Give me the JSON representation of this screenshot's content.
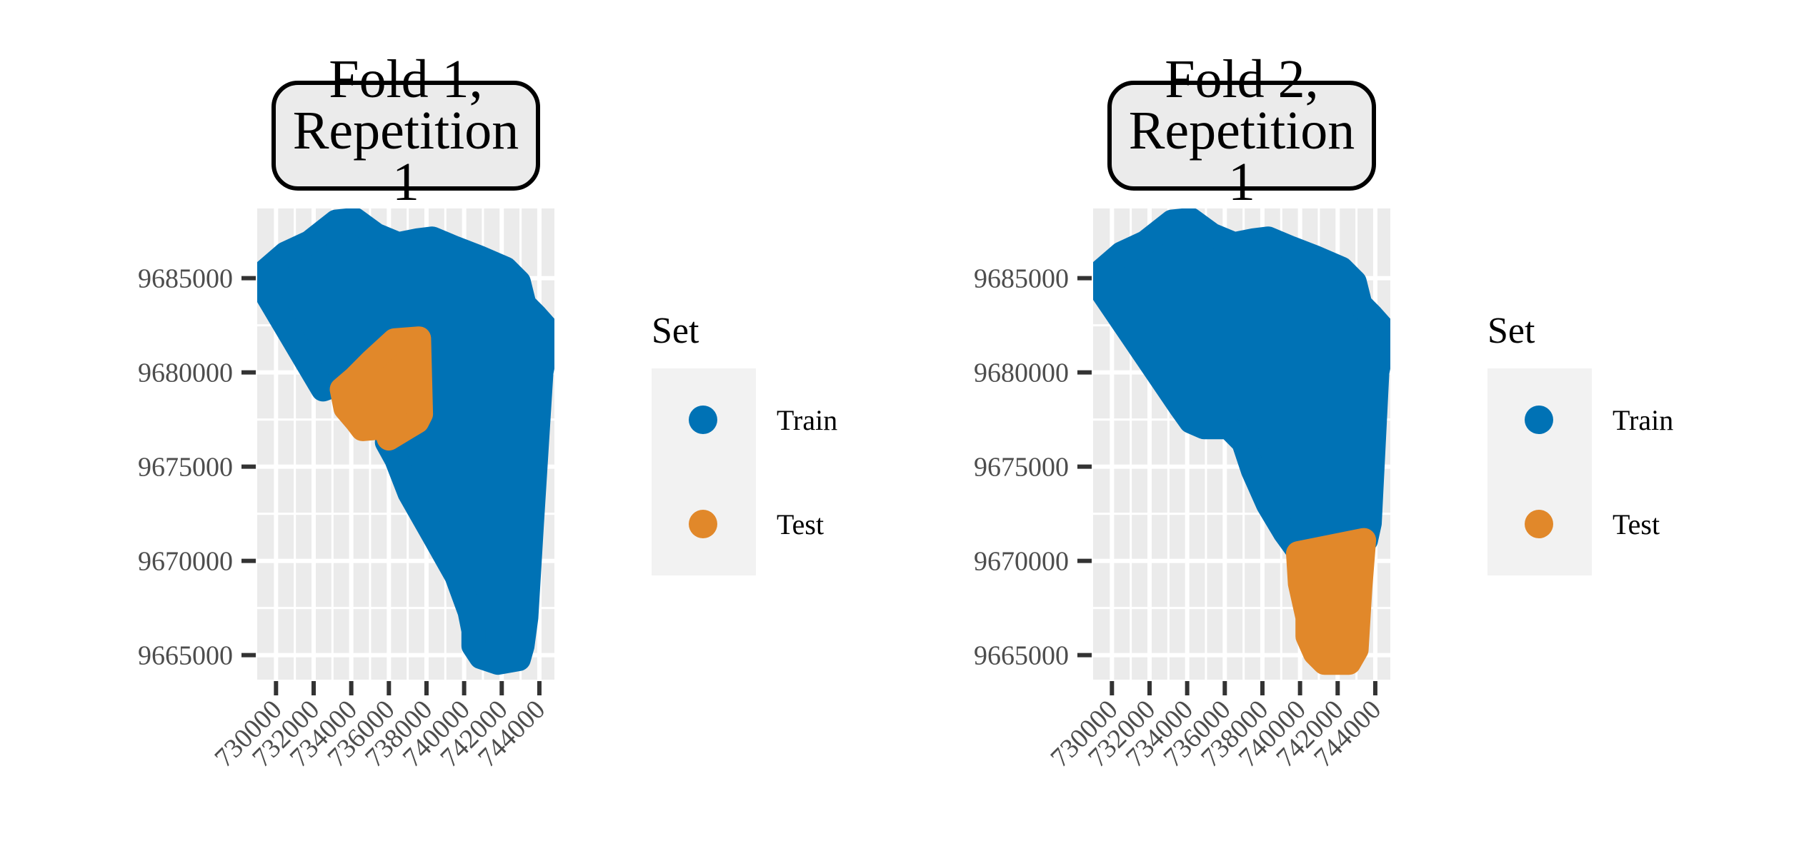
{
  "colors": {
    "train": "#0072B5",
    "test": "#E1882A",
    "panel_bg": "#EBEBEB",
    "grid": "#FFFFFF",
    "strip_bg": "#EBEBEB",
    "legend_bg": "#F2F2F2",
    "tick": "#333333"
  },
  "chart_data": [
    {
      "type": "scatter",
      "title": "Fold 1,\nRepetition\n1",
      "title_lines": [
        "Fold 1,",
        "Repetition",
        "1"
      ],
      "x_ticks": [
        730000,
        732000,
        734000,
        736000,
        738000,
        740000,
        742000,
        744000
      ],
      "x_tick_labels": [
        "730000",
        "732000",
        "734000",
        "736000",
        "738000",
        "740000",
        "742000",
        "744000"
      ],
      "y_ticks": [
        9665000,
        9670000,
        9675000,
        9680000,
        9685000
      ],
      "y_tick_labels": [
        "9665000",
        "9670000",
        "9675000",
        "9680000",
        "9685000"
      ],
      "xlim": [
        729000,
        744800
      ],
      "ylim": [
        9663700,
        9688700
      ],
      "series": [
        {
          "name": "Train",
          "region": [
            [
              729000,
              9685000
            ],
            [
              730500,
              9686300
            ],
            [
              731800,
              9686900
            ],
            [
              733200,
              9688000
            ],
            [
              734200,
              9688100
            ],
            [
              735300,
              9687300
            ],
            [
              736500,
              9686800
            ],
            [
              737500,
              9687000
            ],
            [
              738300,
              9687100
            ],
            [
              739500,
              9686600
            ],
            [
              740800,
              9686100
            ],
            [
              742200,
              9685500
            ],
            [
              742900,
              9684800
            ],
            [
              743200,
              9683600
            ],
            [
              743800,
              9683000
            ],
            [
              744600,
              9682100
            ],
            [
              744400,
              9681500
            ],
            [
              744100,
              9680000
            ],
            [
              743600,
              9672000
            ],
            [
              743300,
              9667000
            ],
            [
              743100,
              9665500
            ],
            [
              742900,
              9664800
            ],
            [
              741800,
              9664600
            ],
            [
              740900,
              9664900
            ],
            [
              740500,
              9665500
            ],
            [
              740500,
              9666300
            ],
            [
              740300,
              9667300
            ],
            [
              739600,
              9669200
            ],
            [
              738300,
              9671500
            ],
            [
              737100,
              9673600
            ],
            [
              736400,
              9675400
            ],
            [
              735900,
              9676300
            ],
            [
              736500,
              9677100
            ],
            [
              737400,
              9677100
            ],
            [
              737700,
              9677800
            ],
            [
              737600,
              9681700
            ],
            [
              736400,
              9681800
            ],
            [
              734900,
              9680600
            ],
            [
              733900,
              9679600
            ],
            [
              732500,
              9679100
            ],
            [
              729000,
              9685000
            ]
          ]
        },
        {
          "name": "Test",
          "region": [
            [
              733500,
              9679100
            ],
            [
              734200,
              9679700
            ],
            [
              735100,
              9680600
            ],
            [
              736300,
              9681700
            ],
            [
              737600,
              9681800
            ],
            [
              737700,
              9677800
            ],
            [
              737500,
              9677400
            ],
            [
              737000,
              9677100
            ],
            [
              736000,
              9676500
            ],
            [
              735800,
              9677100
            ],
            [
              734600,
              9677000
            ],
            [
              734300,
              9677400
            ],
            [
              733700,
              9678100
            ],
            [
              733500,
              9679100
            ]
          ]
        }
      ],
      "legend": {
        "title": "Set",
        "entries": [
          "Train",
          "Test"
        ],
        "position": "right"
      }
    },
    {
      "type": "scatter",
      "title": "Fold 2,\nRepetition\n1",
      "title_lines": [
        "Fold 2,",
        "Repetition",
        "1"
      ],
      "x_ticks": [
        730000,
        732000,
        734000,
        736000,
        738000,
        740000,
        742000,
        744000
      ],
      "x_tick_labels": [
        "730000",
        "732000",
        "734000",
        "736000",
        "738000",
        "740000",
        "742000",
        "744000"
      ],
      "y_ticks": [
        9665000,
        9670000,
        9675000,
        9680000,
        9685000
      ],
      "y_tick_labels": [
        "9665000",
        "9670000",
        "9675000",
        "9680000",
        "9685000"
      ],
      "xlim": [
        729000,
        744800
      ],
      "ylim": [
        9663700,
        9688700
      ],
      "series": [
        {
          "name": "Train",
          "region": [
            [
              729000,
              9685000
            ],
            [
              730500,
              9686300
            ],
            [
              731800,
              9686900
            ],
            [
              733200,
              9688000
            ],
            [
              734200,
              9688100
            ],
            [
              735300,
              9687300
            ],
            [
              736500,
              9686800
            ],
            [
              737500,
              9687000
            ],
            [
              738300,
              9687100
            ],
            [
              739500,
              9686600
            ],
            [
              740800,
              9686100
            ],
            [
              742200,
              9685500
            ],
            [
              742900,
              9684800
            ],
            [
              743200,
              9683600
            ],
            [
              743800,
              9683000
            ],
            [
              744600,
              9682100
            ],
            [
              744400,
              9681500
            ],
            [
              744100,
              9680000
            ],
            [
              743700,
              9672000
            ],
            [
              743500,
              9671100
            ],
            [
              740000,
              9670400
            ],
            [
              739200,
              9671500
            ],
            [
              738300,
              9673000
            ],
            [
              737500,
              9674800
            ],
            [
              737000,
              9676300
            ],
            [
              736200,
              9677100
            ],
            [
              734900,
              9677100
            ],
            [
              734200,
              9677400
            ],
            [
              733700,
              9678100
            ],
            [
              729000,
              9685000
            ]
          ]
        },
        {
          "name": "Test",
          "region": [
            [
              739900,
              9670400
            ],
            [
              743400,
              9671100
            ],
            [
              743200,
              9668600
            ],
            [
              743000,
              9665300
            ],
            [
              742600,
              9664600
            ],
            [
              741300,
              9664600
            ],
            [
              740800,
              9665100
            ],
            [
              740400,
              9666000
            ],
            [
              740400,
              9667000
            ],
            [
              740000,
              9668800
            ],
            [
              739900,
              9670400
            ]
          ]
        }
      ],
      "legend": {
        "title": "Set",
        "entries": [
          "Train",
          "Test"
        ],
        "position": "right"
      }
    }
  ]
}
